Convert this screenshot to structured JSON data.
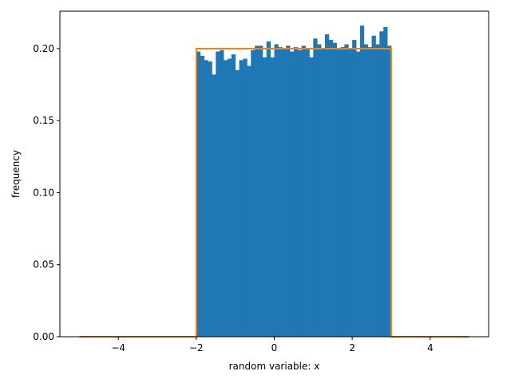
{
  "chart_data": {
    "type": "bar",
    "xlabel": "random variable: x",
    "ylabel": "frequency",
    "xlim": [
      -5.5,
      5.5
    ],
    "ylim": [
      0.0,
      0.226
    ],
    "xticks": [
      -4,
      -2,
      0,
      2,
      4
    ],
    "xtick_labels": [
      "−4",
      "−2",
      "0",
      "2",
      "4"
    ],
    "yticks": [
      0.0,
      0.05,
      0.1,
      0.15,
      0.2
    ],
    "ytick_labels": [
      "0.00",
      "0.05",
      "0.10",
      "0.15",
      "0.20"
    ],
    "grid": false,
    "series": [
      {
        "type": "histogram",
        "color": "#1f77b4",
        "bin_start": -2.0,
        "bin_width": 0.1,
        "values": [
          0.198,
          0.195,
          0.192,
          0.191,
          0.182,
          0.198,
          0.199,
          0.192,
          0.193,
          0.196,
          0.185,
          0.192,
          0.193,
          0.188,
          0.199,
          0.202,
          0.202,
          0.194,
          0.205,
          0.194,
          0.203,
          0.201,
          0.2,
          0.202,
          0.198,
          0.201,
          0.199,
          0.202,
          0.2,
          0.194,
          0.207,
          0.203,
          0.2,
          0.21,
          0.206,
          0.204,
          0.2,
          0.201,
          0.203,
          0.2,
          0.206,
          0.198,
          0.216,
          0.203,
          0.201,
          0.209,
          0.203,
          0.212,
          0.215,
          0.202
        ]
      },
      {
        "type": "line",
        "color": "#ff7f0e",
        "x": [
          -5,
          -2,
          -2,
          3,
          3,
          5
        ],
        "y": [
          0.0,
          0.0,
          0.2,
          0.2,
          0.0,
          0.0
        ]
      }
    ]
  }
}
